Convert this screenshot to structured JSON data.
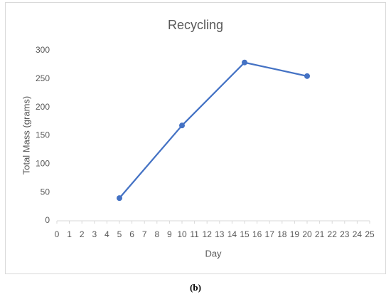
{
  "chart_data": {
    "type": "line",
    "title": "Recycling",
    "x_label": "Day",
    "y_label": "Total Mass (grams)",
    "x": [
      5,
      10,
      15,
      20
    ],
    "series": [
      {
        "name": "Total Mass",
        "color": "#4472c4",
        "values": [
          40,
          168,
          279,
          255
        ]
      }
    ],
    "xlim": [
      0,
      25
    ],
    "xticks": [
      0,
      1,
      2,
      3,
      4,
      5,
      6,
      7,
      8,
      9,
      10,
      11,
      12,
      13,
      14,
      15,
      16,
      17,
      18,
      19,
      20,
      21,
      22,
      23,
      24,
      25
    ],
    "ylim": [
      0,
      300
    ],
    "yticks": [
      0,
      50,
      100,
      150,
      200,
      250,
      300
    ],
    "grid": false,
    "markers": true
  },
  "caption": "(b)"
}
